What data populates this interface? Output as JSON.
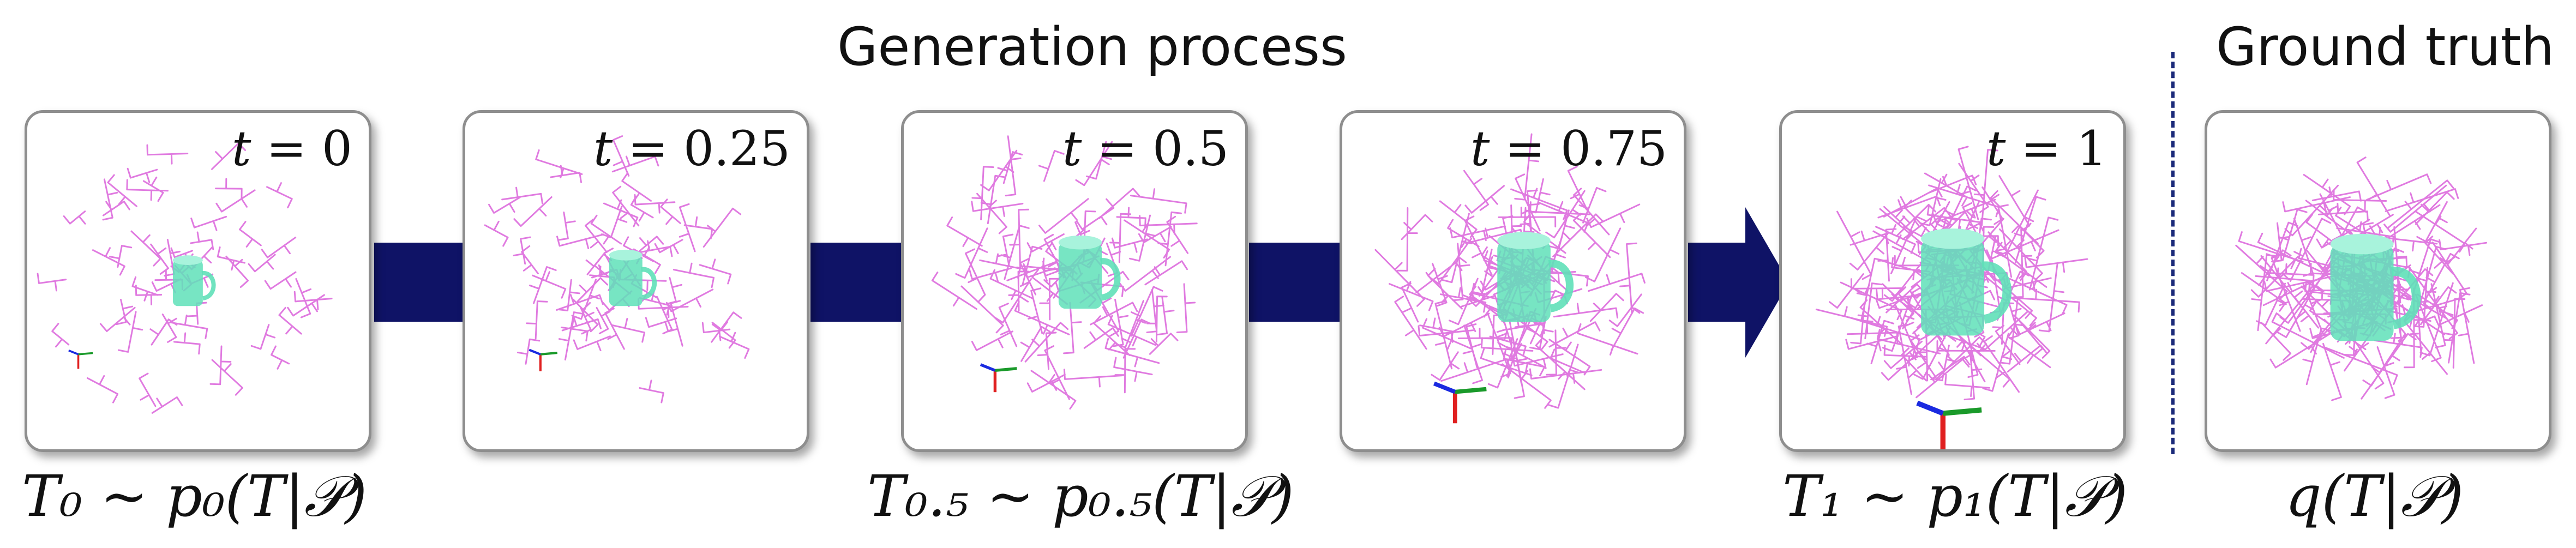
{
  "titles": {
    "generation": "Generation process",
    "ground_truth": "Ground truth"
  },
  "panels": [
    {
      "id": "p0",
      "t_var": "t",
      "t_value": "= 0",
      "spread": 0.4
    },
    {
      "id": "p25",
      "t_var": "t",
      "t_value": "= 0.25",
      "spread": 0.55
    },
    {
      "id": "p50",
      "t_var": "t",
      "t_value": "= 0.5",
      "spread": 0.7
    },
    {
      "id": "p75",
      "t_var": "t",
      "t_value": "= 0.75",
      "spread": 0.82
    },
    {
      "id": "p1",
      "t_var": "t",
      "t_value": "= 1",
      "spread": 0.95
    },
    {
      "id": "pgt",
      "t_var": "",
      "t_value": "",
      "spread": 1.0
    }
  ],
  "captions": {
    "c0": "T₀ ~ p₀(T|𝒫)",
    "c05": "T₀.₅ ~ p₀.₅(T|𝒫)",
    "c1": "T₁ ~ p₁(T|𝒫)",
    "cgt": "q(T|𝒫)"
  },
  "colors": {
    "arrow": "#0f1366",
    "gripper": "#e07ae0",
    "mug": "#5fe0b8",
    "axis_x": "#e02020",
    "axis_y": "#1a9a2a",
    "axis_z": "#1a2ae0"
  }
}
